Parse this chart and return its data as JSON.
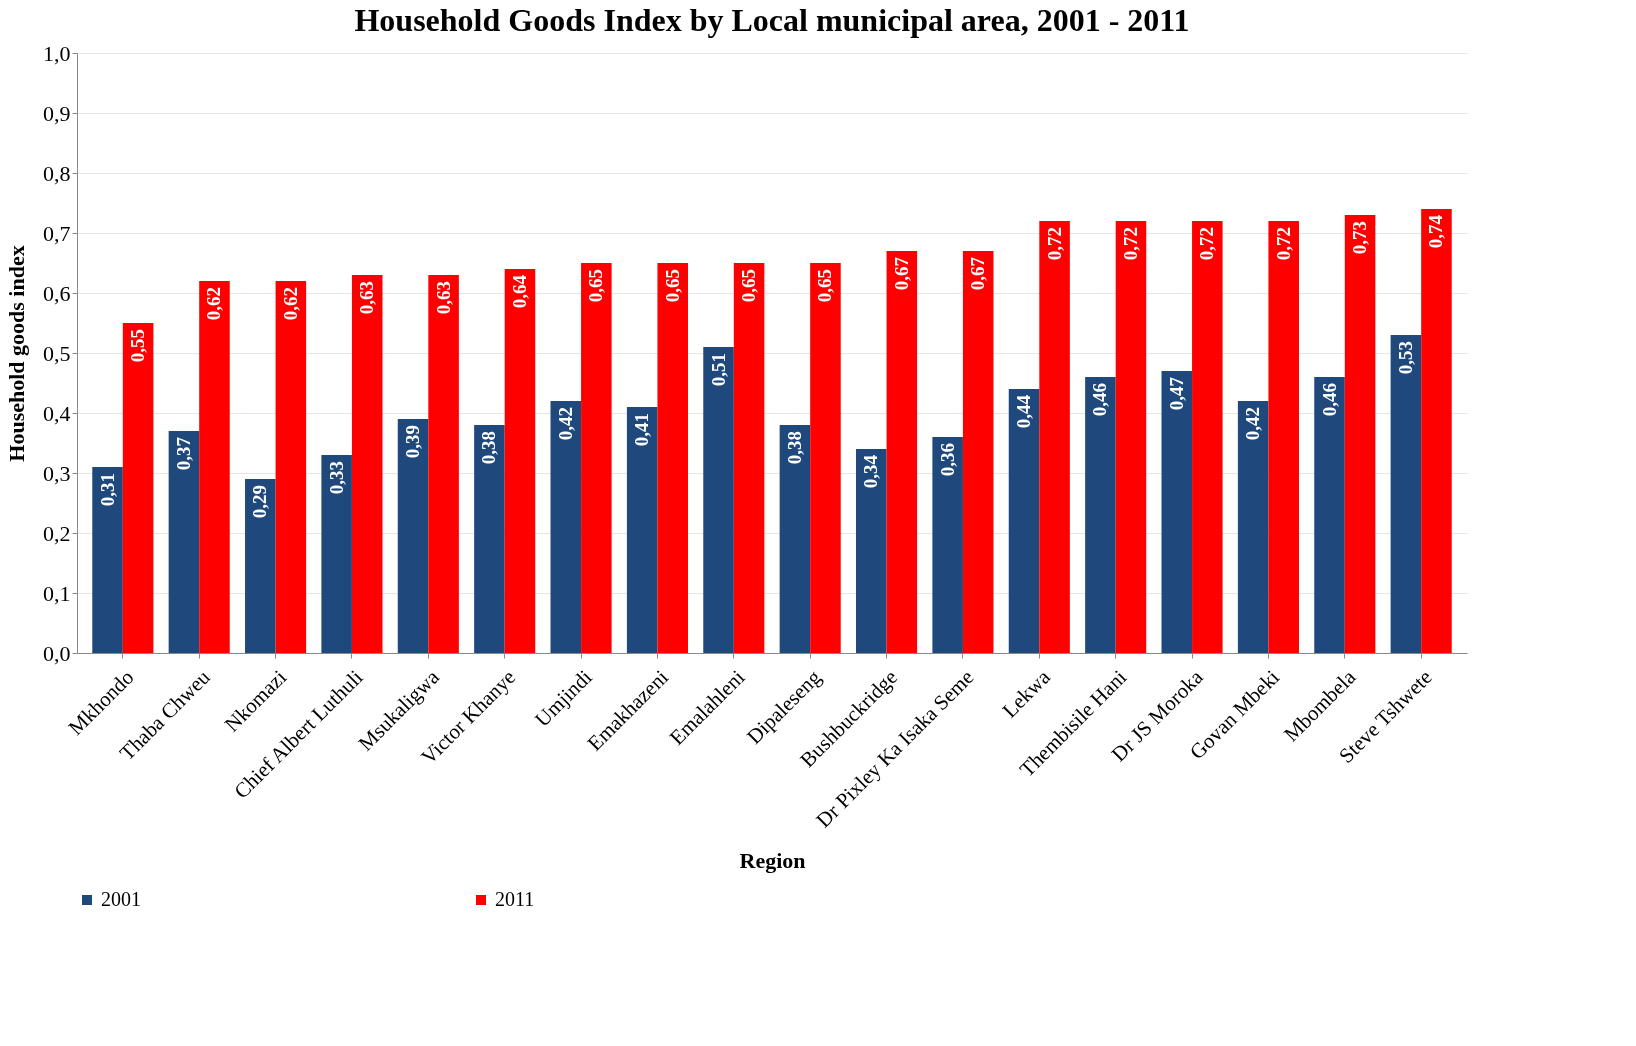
{
  "chart_data": {
    "type": "bar",
    "title": "Household Goods Index by Local municipal area, 2001 - 2011",
    "xlabel": "Region",
    "ylabel": "Household goods index",
    "categories": [
      "Mkhondo",
      "Thaba Chweu",
      "Nkomazi",
      "Chief Albert Luthuli",
      "Msukaligwa",
      "Victor Khanye",
      "Umjindi",
      "Emakhazeni",
      "Emalahleni",
      "Dipaleseng",
      "Bushbuckridge",
      "Dr Pixley Ka Isaka Seme",
      "Lekwa",
      "Thembisile Hani",
      "Dr JS Moroka",
      "Govan Mbeki",
      "Mbombela",
      "Steve Tshwete"
    ],
    "series": [
      {
        "name": "2001",
        "color": "#1f497d",
        "values": [
          0.31,
          0.37,
          0.29,
          0.33,
          0.39,
          0.38,
          0.42,
          0.41,
          0.51,
          0.38,
          0.34,
          0.36,
          0.44,
          0.46,
          0.47,
          0.42,
          0.46,
          0.53
        ],
        "value_labels": [
          "0,31",
          "0,37",
          "0,29",
          "0,33",
          "0,39",
          "0,38",
          "0,42",
          "0,41",
          "0,51",
          "0,38",
          "0,34",
          "0,36",
          "0,44",
          "0,46",
          "0,47",
          "0,42",
          "0,46",
          "0,53"
        ]
      },
      {
        "name": "2011",
        "color": "#ff0000",
        "values": [
          0.55,
          0.62,
          0.62,
          0.63,
          0.63,
          0.64,
          0.65,
          0.65,
          0.65,
          0.65,
          0.67,
          0.67,
          0.72,
          0.72,
          0.72,
          0.72,
          0.73,
          0.74
        ],
        "value_labels": [
          "0,55",
          "0,62",
          "0,62",
          "0,63",
          "0,63",
          "0,64",
          "0,65",
          "0,65",
          "0,65",
          "0,65",
          "0,67",
          "0,67",
          "0,72",
          "0,72",
          "0,72",
          "0,72",
          "0,73",
          "0,74"
        ]
      }
    ],
    "ylim": [
      0,
      1
    ],
    "yticks": [
      {
        "value": 0,
        "label": "0,0"
      },
      {
        "value": 0.1,
        "label": "0,1"
      },
      {
        "value": 0.2,
        "label": "0,2"
      },
      {
        "value": 0.3,
        "label": "0,3"
      },
      {
        "value": 0.4,
        "label": "0,4"
      },
      {
        "value": 0.5,
        "label": "0,5"
      },
      {
        "value": 0.6,
        "label": "0,6"
      },
      {
        "value": 0.7,
        "label": "0,7"
      },
      {
        "value": 0.8,
        "label": "0,8"
      },
      {
        "value": 0.9,
        "label": "0,9"
      },
      {
        "value": 1,
        "label": "1,0"
      }
    ],
    "grid": "y",
    "legend": "bottom"
  }
}
